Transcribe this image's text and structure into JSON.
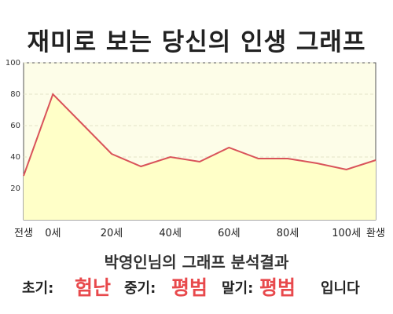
{
  "title": "재미로 보는 당신의 인생 그래프",
  "chart_data": {
    "type": "area",
    "x_labels": [
      "전생",
      "0세",
      "20세",
      "40세",
      "60세",
      "80세",
      "100세",
      "환생"
    ],
    "x": [
      "전생",
      "0세",
      "10세",
      "20세",
      "30세",
      "40세",
      "50세",
      "60세",
      "70세",
      "80세",
      "90세",
      "100세",
      "환생"
    ],
    "values": [
      28,
      80,
      61,
      42,
      34,
      40,
      37,
      46,
      39,
      39,
      36,
      32,
      38
    ],
    "yticks": [
      20,
      40,
      60,
      80,
      100
    ],
    "ylim": [
      0,
      100
    ],
    "grid": true,
    "line_color": "#d9535a",
    "fill_color": "#ffffc8",
    "background_color": "#fdfde8"
  },
  "result": {
    "subtitle": "박영인님의 그래프 분석결과",
    "early_label": "초기:",
    "early_value": "험난",
    "middle_label": "중기:",
    "middle_value": "평범",
    "late_label": "말기:",
    "late_value": "평범",
    "ending": "입니다"
  }
}
